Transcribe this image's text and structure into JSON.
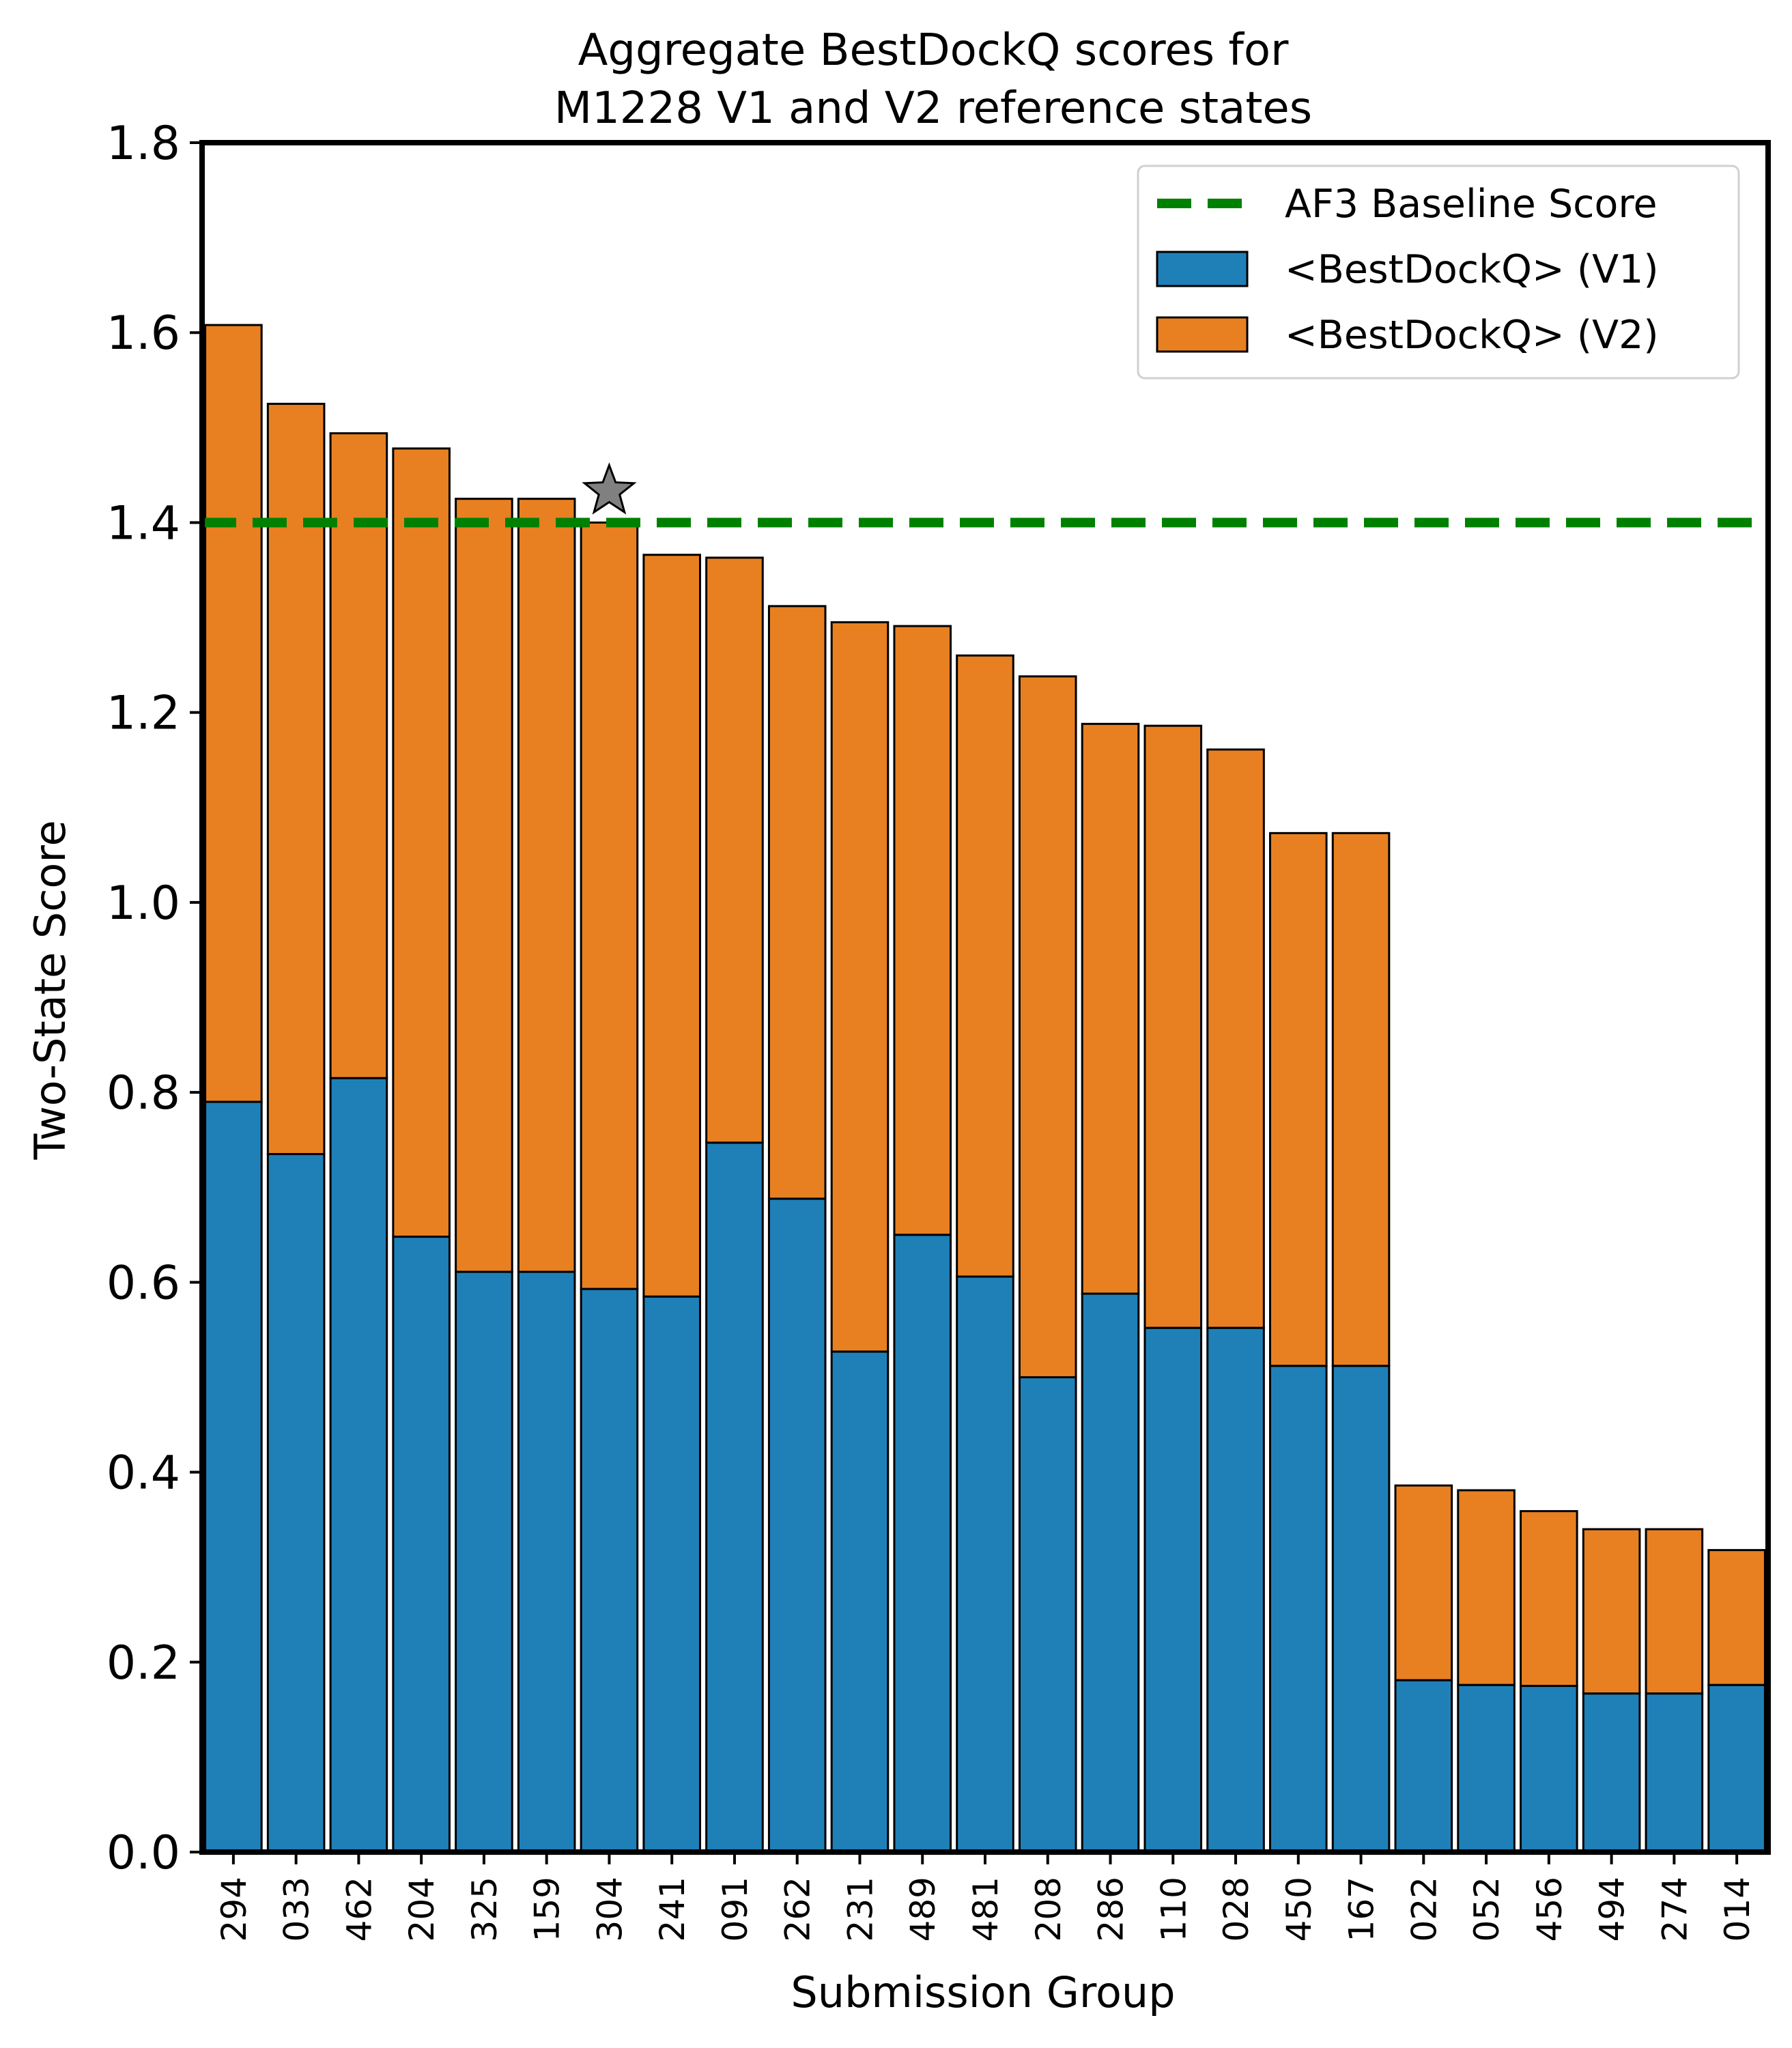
{
  "chart_data": {
    "type": "bar",
    "stacked": true,
    "title_line1": "Aggregate BestDockQ scores for",
    "title_line2": "M1228 V1 and V2 reference states",
    "xlabel": "Submission Group",
    "ylabel": "Two-State Score",
    "ylim": [
      0,
      1.8
    ],
    "yticks": [
      "0.0",
      "0.2",
      "0.4",
      "0.6",
      "0.8",
      "1.0",
      "1.2",
      "1.4",
      "1.6",
      "1.8"
    ],
    "categories": [
      "294",
      "033",
      "462",
      "204",
      "325",
      "159",
      "304",
      "241",
      "091",
      "262",
      "231",
      "489",
      "481",
      "208",
      "286",
      "110",
      "028",
      "450",
      "167",
      "022",
      "052",
      "456",
      "494",
      "274",
      "014"
    ],
    "series": [
      {
        "name": "<BestDockQ> (V1)",
        "color": "#1f80b8",
        "values": [
          0.79,
          0.735,
          0.815,
          0.648,
          0.611,
          0.611,
          0.593,
          0.585,
          0.747,
          0.688,
          0.527,
          0.65,
          0.606,
          0.5,
          0.588,
          0.552,
          0.552,
          0.512,
          0.512,
          0.181,
          0.176,
          0.175,
          0.167,
          0.167,
          0.176
        ]
      },
      {
        "name": "<BestDockQ> (V2)",
        "color": "#e88021",
        "values": [
          0.818,
          0.79,
          0.679,
          0.83,
          0.814,
          0.814,
          0.807,
          0.781,
          0.616,
          0.624,
          0.768,
          0.641,
          0.654,
          0.738,
          0.6,
          0.634,
          0.609,
          0.561,
          0.561,
          0.205,
          0.205,
          0.184,
          0.173,
          0.173,
          0.142
        ]
      }
    ],
    "baseline": {
      "label": "AF3 Baseline Score",
      "value": 1.4,
      "color": "#008000"
    },
    "marker": {
      "category": "304",
      "value": 1.433,
      "shape": "star-icon",
      "color": "#808080"
    },
    "legend_position": "top-right",
    "grid": false
  }
}
